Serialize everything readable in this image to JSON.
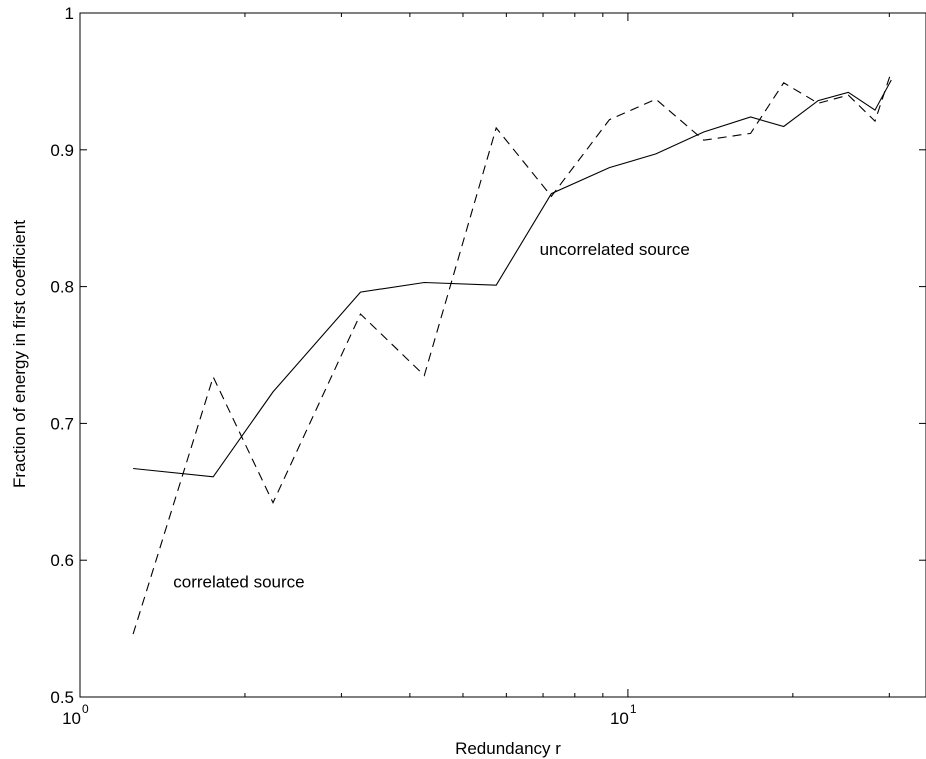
{
  "chart_data": {
    "type": "line",
    "title": "",
    "xlabel": "Redundancy r",
    "ylabel": "Fraction of energy in first coefficient",
    "xscale": "log",
    "xlim": [
      1,
      35
    ],
    "ylim": [
      0.5,
      1.0
    ],
    "grid": false,
    "x_ticks": [
      {
        "base": "10",
        "exp": "0",
        "value": 1
      },
      {
        "base": "10",
        "exp": "1",
        "value": 10
      }
    ],
    "y_ticks": [
      {
        "label": "0.5",
        "value": 0.5
      },
      {
        "label": "0.6",
        "value": 0.6
      },
      {
        "label": "0.7",
        "value": 0.7
      },
      {
        "label": "0.8",
        "value": 0.8
      },
      {
        "label": "0.9",
        "value": 0.9
      },
      {
        "label": "1",
        "value": 1.0
      }
    ],
    "series": [
      {
        "style": "solid",
        "color": "#000000",
        "x": [
          1.25,
          1.75,
          2.25,
          3.25,
          4.25,
          5.75,
          7.25,
          9.25,
          11.25,
          13.75,
          16.75,
          19.25,
          22.25,
          25.25,
          28.25,
          30.25
        ],
        "y": [
          0.667,
          0.661,
          0.723,
          0.796,
          0.803,
          0.801,
          0.868,
          0.887,
          0.897,
          0.913,
          0.924,
          0.917,
          0.936,
          0.942,
          0.929,
          0.951
        ]
      },
      {
        "style": "dashed",
        "color": "#000000",
        "x": [
          1.25,
          1.75,
          2.25,
          3.25,
          4.25,
          5.75,
          7.25,
          9.25,
          11.25,
          13.75,
          16.75,
          19.25,
          22.25,
          25.25,
          28.25,
          30.25
        ],
        "y": [
          0.546,
          0.734,
          0.642,
          0.78,
          0.735,
          0.916,
          0.866,
          0.922,
          0.937,
          0.907,
          0.912,
          0.949,
          0.934,
          0.94,
          0.921,
          0.957
        ]
      }
    ],
    "annotations": [
      {
        "text": "uncorrelated source",
        "x": 6.9,
        "y": 0.823
      },
      {
        "text": "correlated source",
        "x": 1.48,
        "y": 0.58
      }
    ]
  }
}
